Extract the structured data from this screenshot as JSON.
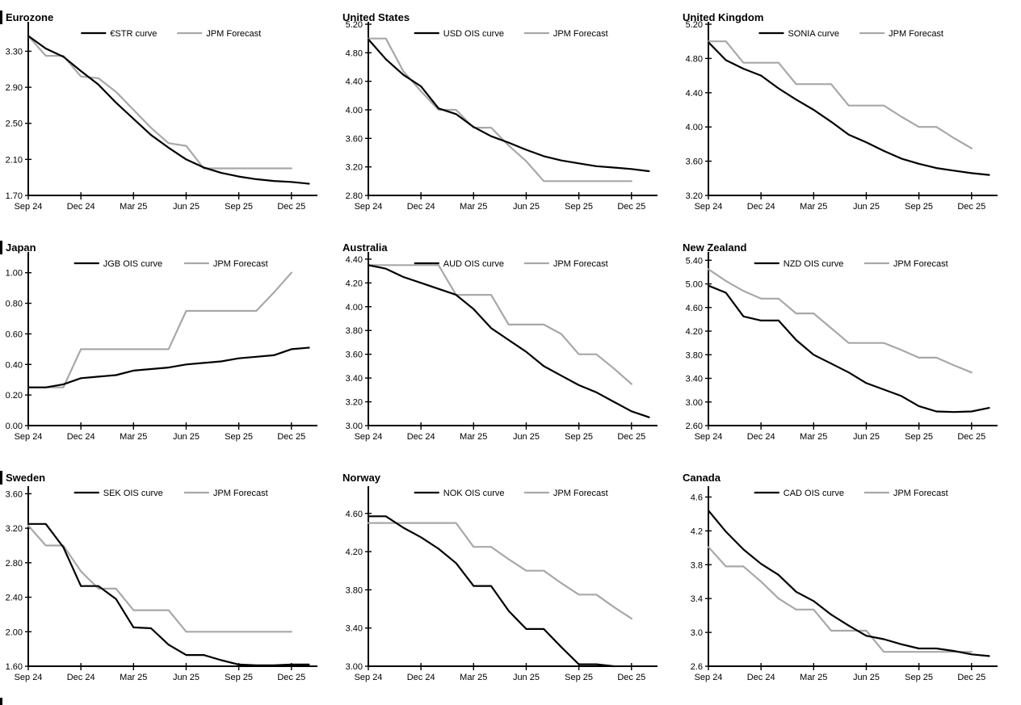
{
  "page": {
    "background": "#ffffff"
  },
  "colors": {
    "series": "#000000",
    "forecast": "#a8a8a8"
  },
  "x_axis": {
    "tick_labels": [
      "Sep 24",
      "Dec 24",
      "Mar 25",
      "Jun 25",
      "Sep 25",
      "Dec 25"
    ],
    "tick_months": [
      0,
      3,
      6,
      9,
      12,
      15
    ],
    "x_unit": "months from Sep 2024",
    "x_max": 16.3
  },
  "chart_data": [
    {
      "type": "line",
      "title": "Eurozone",
      "ylim": [
        1.7,
        3.6
      ],
      "y_ticks": [
        3.3,
        2.9,
        2.5,
        2.1,
        1.7
      ],
      "y_decimals": 2,
      "legend_position": "top",
      "grid": false,
      "series": [
        {
          "name": "€STR curve",
          "color_key": "series",
          "values": [
            3.47,
            3.33,
            3.24,
            3.08,
            2.93,
            2.73,
            2.55,
            2.37,
            2.23,
            2.1,
            2.01,
            1.95,
            1.91,
            1.88,
            1.86,
            1.85,
            1.83
          ]
        },
        {
          "name": "JPM Forecast",
          "color_key": "forecast",
          "values": [
            3.47,
            3.25,
            3.25,
            3.02,
            3.0,
            2.85,
            2.65,
            2.45,
            2.28,
            2.25,
            2.0,
            2.0,
            2.0,
            2.0,
            2.0,
            2.0
          ]
        }
      ]
    },
    {
      "type": "line",
      "title": "United States",
      "ylim": [
        2.8,
        5.2
      ],
      "y_ticks": [
        5.2,
        4.8,
        4.4,
        4.0,
        3.6,
        3.2,
        2.8
      ],
      "y_decimals": 2,
      "legend_position": "top",
      "grid": false,
      "series": [
        {
          "name": "USD OIS curve",
          "color_key": "series",
          "values": [
            4.99,
            4.71,
            4.49,
            4.33,
            4.02,
            3.94,
            3.76,
            3.63,
            3.54,
            3.44,
            3.35,
            3.29,
            3.25,
            3.21,
            3.19,
            3.17,
            3.14
          ]
        },
        {
          "name": "JPM Forecast",
          "color_key": "forecast",
          "values": [
            5.0,
            5.0,
            4.54,
            4.26,
            4.0,
            4.0,
            3.75,
            3.75,
            3.5,
            3.28,
            3.0,
            3.0,
            3.0,
            3.0,
            3.0,
            3.0
          ]
        }
      ]
    },
    {
      "type": "line",
      "title": "United Kingdom",
      "ylim": [
        3.2,
        5.2
      ],
      "y_ticks": [
        5.2,
        4.8,
        4.4,
        4.0,
        3.6,
        3.2
      ],
      "y_decimals": 2,
      "legend_position": "top",
      "grid": false,
      "series": [
        {
          "name": "SONIA curve",
          "color_key": "series",
          "values": [
            4.99,
            4.78,
            4.68,
            4.6,
            4.45,
            4.32,
            4.2,
            4.06,
            3.91,
            3.82,
            3.72,
            3.63,
            3.57,
            3.52,
            3.49,
            3.46,
            3.44
          ]
        },
        {
          "name": "JPM Forecast",
          "color_key": "forecast",
          "values": [
            5.0,
            5.0,
            4.75,
            4.75,
            4.75,
            4.5,
            4.5,
            4.5,
            4.25,
            4.25,
            4.25,
            4.12,
            4.0,
            4.0,
            3.87,
            3.75
          ]
        }
      ]
    },
    {
      "type": "line",
      "title": "Japan",
      "ylim": [
        0.0,
        1.12
      ],
      "y_ticks": [
        1.0,
        0.8,
        0.6,
        0.4,
        0.2,
        0.0
      ],
      "y_decimals": 2,
      "legend_position": "top",
      "grid": false,
      "series": [
        {
          "name": "JGB OIS curve",
          "color_key": "series",
          "values": [
            0.25,
            0.25,
            0.27,
            0.31,
            0.32,
            0.33,
            0.36,
            0.37,
            0.38,
            0.4,
            0.41,
            0.42,
            0.44,
            0.45,
            0.46,
            0.5,
            0.51
          ]
        },
        {
          "name": "JPM Forecast",
          "color_key": "forecast",
          "values": [
            0.25,
            0.25,
            0.25,
            0.5,
            0.5,
            0.5,
            0.5,
            0.5,
            0.5,
            0.75,
            0.75,
            0.75,
            0.75,
            0.75,
            0.87,
            1.0
          ]
        }
      ]
    },
    {
      "type": "line",
      "title": "Australia",
      "ylim": [
        3.0,
        4.44
      ],
      "y_ticks": [
        4.4,
        4.2,
        4.0,
        3.8,
        3.6,
        3.4,
        3.2,
        3.0
      ],
      "y_decimals": 2,
      "legend_position": "top",
      "grid": false,
      "series": [
        {
          "name": "AUD OIS curve",
          "color_key": "series",
          "values": [
            4.35,
            4.32,
            4.25,
            4.2,
            4.15,
            4.1,
            3.98,
            3.82,
            3.72,
            3.62,
            3.5,
            3.42,
            3.34,
            3.28,
            3.2,
            3.12,
            3.07
          ]
        },
        {
          "name": "JPM Forecast",
          "color_key": "forecast",
          "values": [
            4.35,
            4.35,
            4.35,
            4.35,
            4.35,
            4.1,
            4.1,
            4.1,
            3.85,
            3.85,
            3.85,
            3.77,
            3.6,
            3.6,
            3.48,
            3.35
          ]
        }
      ]
    },
    {
      "type": "line",
      "title": "New Zealand",
      "ylim": [
        2.6,
        5.5
      ],
      "y_ticks": [
        5.4,
        5.0,
        4.6,
        4.2,
        3.8,
        3.4,
        3.0,
        2.6
      ],
      "y_decimals": 2,
      "legend_position": "top",
      "grid": false,
      "series": [
        {
          "name": "NZD OIS curve",
          "color_key": "series",
          "values": [
            4.97,
            4.85,
            4.45,
            4.38,
            4.38,
            4.05,
            3.8,
            3.65,
            3.5,
            3.32,
            3.21,
            3.1,
            2.93,
            2.84,
            2.83,
            2.84,
            2.9
          ]
        },
        {
          "name": "JPM Forecast",
          "color_key": "forecast",
          "values": [
            5.25,
            5.05,
            4.88,
            4.75,
            4.75,
            4.5,
            4.5,
            4.25,
            4.0,
            4.0,
            4.0,
            3.88,
            3.75,
            3.75,
            3.62,
            3.5
          ]
        }
      ]
    },
    {
      "type": "line",
      "title": "Sweden",
      "ylim": [
        1.6,
        3.66
      ],
      "y_ticks": [
        3.6,
        3.2,
        2.8,
        2.4,
        2.0,
        1.6
      ],
      "y_decimals": 2,
      "legend_position": "top",
      "grid": false,
      "series": [
        {
          "name": "SEK OIS curve",
          "color_key": "series",
          "values": [
            3.25,
            3.25,
            2.98,
            2.53,
            2.53,
            2.38,
            2.05,
            2.04,
            1.85,
            1.73,
            1.73,
            1.67,
            1.62,
            1.61,
            1.61,
            1.62,
            1.62
          ]
        },
        {
          "name": "JPM Forecast",
          "color_key": "forecast",
          "values": [
            3.23,
            3.0,
            3.0,
            2.7,
            2.5,
            2.5,
            2.25,
            2.25,
            2.25,
            2.0,
            2.0,
            2.0,
            2.0,
            2.0,
            2.0,
            2.0
          ]
        }
      ]
    },
    {
      "type": "line",
      "title": "Norway",
      "ylim": [
        3.0,
        4.86
      ],
      "y_ticks": [
        4.6,
        4.2,
        3.8,
        3.4,
        3.0
      ],
      "y_decimals": 2,
      "legend_position": "top",
      "grid": false,
      "series": [
        {
          "name": "NOK OIS curve",
          "color_key": "series",
          "values": [
            4.57,
            4.57,
            4.45,
            4.35,
            4.23,
            4.08,
            3.84,
            3.84,
            3.58,
            3.39,
            3.39,
            3.2,
            3.02,
            3.02,
            3.0
          ]
        },
        {
          "name": "JPM Forecast",
          "color_key": "forecast",
          "values": [
            4.5,
            4.5,
            4.5,
            4.5,
            4.5,
            4.5,
            4.25,
            4.25,
            4.12,
            4.0,
            4.0,
            3.87,
            3.75,
            3.75,
            3.62,
            3.5
          ]
        }
      ]
    },
    {
      "type": "line",
      "title": "Canada",
      "ylim": [
        2.6,
        4.7
      ],
      "y_ticks": [
        4.6,
        4.2,
        3.8,
        3.4,
        3.0,
        2.6
      ],
      "y_decimals": 1,
      "legend_position": "top",
      "grid": false,
      "series": [
        {
          "name": "CAD OIS curve",
          "color_key": "series",
          "values": [
            4.44,
            4.19,
            3.98,
            3.81,
            3.68,
            3.48,
            3.37,
            3.21,
            3.08,
            2.96,
            2.92,
            2.86,
            2.81,
            2.81,
            2.78,
            2.74,
            2.72
          ]
        },
        {
          "name": "JPM Forecast",
          "color_key": "forecast",
          "values": [
            4.01,
            3.78,
            3.78,
            3.6,
            3.4,
            3.27,
            3.27,
            3.02,
            3.02,
            3.02,
            2.77,
            2.77,
            2.77,
            2.77,
            2.77,
            2.77
          ]
        }
      ]
    }
  ]
}
